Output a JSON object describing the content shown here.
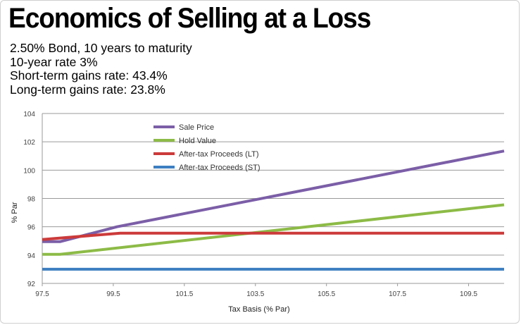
{
  "header": {
    "title": "Economics of Selling at a Loss",
    "subtitles": [
      "2.50% Bond, 10 years to maturity",
      "10-year rate 3%",
      "Short-term gains rate: 43.4%",
      "Long-term gains rate: 23.8%"
    ]
  },
  "chart_data": {
    "type": "line",
    "title": "Economics of Selling at a Loss",
    "xlabel": "Tax Basis (% Par)",
    "ylabel": "% Par",
    "xlim": [
      97.5,
      110.5
    ],
    "ylim": [
      92,
      104
    ],
    "xticks": [
      "97.5",
      "99.5",
      "101.5",
      "103.5",
      "105.5",
      "107.5",
      "109.5"
    ],
    "xtick_values": [
      97.5,
      99.5,
      101.5,
      103.5,
      105.5,
      107.5,
      109.5
    ],
    "yticks": [
      "92",
      "94",
      "96",
      "98",
      "100",
      "102",
      "104"
    ],
    "ytick_values": [
      92,
      94,
      96,
      98,
      100,
      102,
      104
    ],
    "grid": "horizontal",
    "legend_position": "top-left",
    "series": [
      {
        "name": "Sale Price",
        "color": "#7b5ea7",
        "x": [
          97.5,
          98.0,
          99.6,
          110.5
        ],
        "y": [
          94.95,
          94.95,
          96.0,
          101.35
        ]
      },
      {
        "name": "Hold Value",
        "color": "#8dbb47",
        "x": [
          97.5,
          98.0,
          110.5
        ],
        "y": [
          94.05,
          94.05,
          97.55
        ]
      },
      {
        "name": "After-tax Proceeds (LT)",
        "color": "#cc3a3a",
        "x": [
          97.5,
          99.7,
          110.5
        ],
        "y": [
          95.1,
          95.55,
          95.55
        ]
      },
      {
        "name": "After-tax Proceeds (ST)",
        "color": "#3d7fc1",
        "x": [
          97.5,
          110.5
        ],
        "y": [
          93.0,
          93.0
        ]
      }
    ]
  }
}
